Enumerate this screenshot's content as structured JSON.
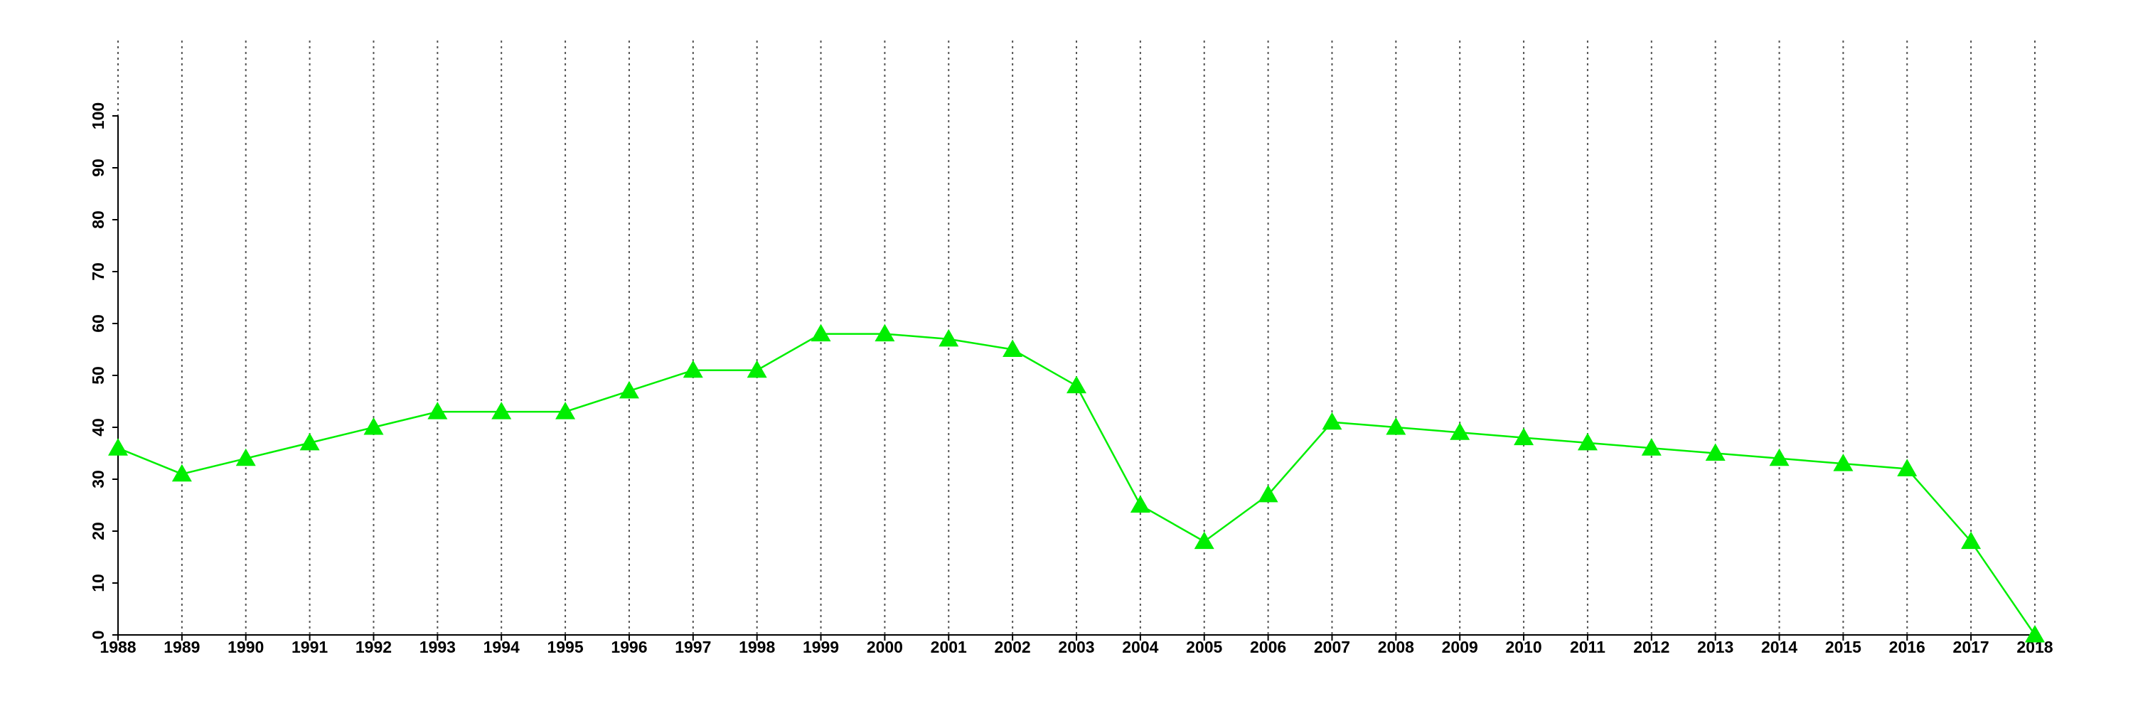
{
  "chart_data": {
    "type": "line",
    "x": [
      1988,
      1989,
      1990,
      1991,
      1992,
      1993,
      1994,
      1995,
      1996,
      1997,
      1998,
      1999,
      2000,
      2001,
      2002,
      2003,
      2004,
      2005,
      2006,
      2007,
      2008,
      2009,
      2010,
      2011,
      2012,
      2013,
      2014,
      2015,
      2016,
      2017,
      2018
    ],
    "series": [
      {
        "color": "#00ee00",
        "values": [
          36,
          31,
          34,
          37,
          40,
          43,
          43,
          43,
          47,
          51,
          51,
          58,
          58,
          57,
          55,
          48,
          25,
          18,
          27,
          41,
          40,
          39,
          38,
          37,
          36,
          35,
          34,
          33,
          32,
          18,
          0
        ]
      }
    ],
    "xlim": [
      1988,
      2018
    ],
    "xticks": [
      1988,
      1989,
      1990,
      1991,
      1992,
      1993,
      1994,
      1995,
      1996,
      1997,
      1998,
      1999,
      2000,
      2001,
      2002,
      2003,
      2004,
      2005,
      2006,
      2007,
      2008,
      2009,
      2010,
      2011,
      2012,
      2013,
      2014,
      2015,
      2016,
      2017,
      2018
    ],
    "ylim": [
      0,
      100
    ],
    "yticks": [
      0,
      10,
      20,
      30,
      40,
      50,
      60,
      70,
      80,
      90,
      100
    ],
    "grid": true
  }
}
